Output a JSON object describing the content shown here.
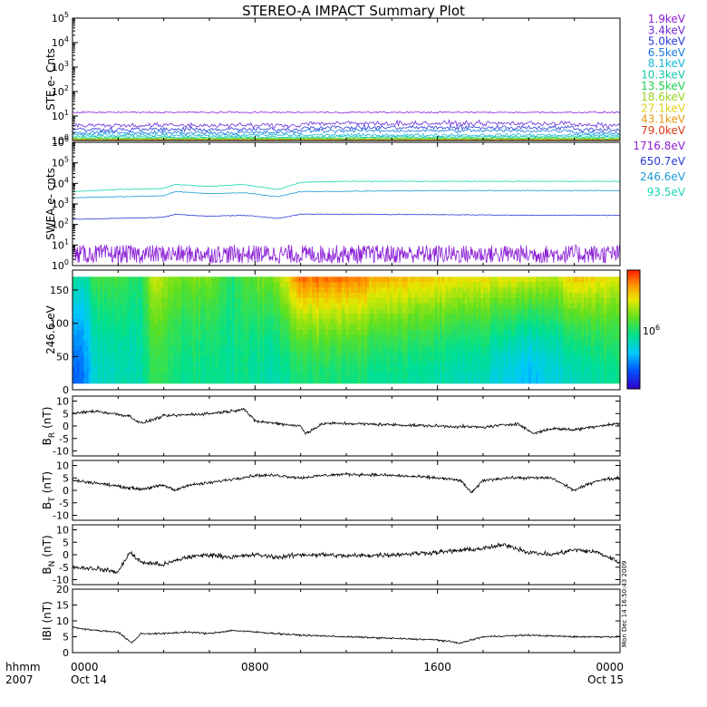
{
  "title": "STEREO-A IMPACT Summary Plot",
  "time_axis": {
    "row1_label": "hhmm",
    "row2_label": "2007",
    "ticks": [
      {
        "hour": 0,
        "time": "0000",
        "date": "Oct 14"
      },
      {
        "hour": 8,
        "time": "0800",
        "date": ""
      },
      {
        "hour": 16,
        "time": "1600",
        "date": ""
      },
      {
        "hour": 24,
        "time": "0000",
        "date": "Oct 15"
      }
    ],
    "range_hours": [
      0,
      24
    ]
  },
  "stamp": "Mon Dec 14 16:50:43 2009",
  "colorbar": {
    "label_prefix": "10",
    "label_exp": "6"
  },
  "colors": {
    "ste": [
      "#8b1fd6",
      "#6a2bd8",
      "#2a3ad8",
      "#1a7ae0",
      "#14b8d6",
      "#16c8a8",
      "#1cd050",
      "#9ad21c",
      "#e0d21a",
      "#e89a14",
      "#d83a14"
    ],
    "swea": [
      "#8b1fd6",
      "#2a3ad8",
      "#1a9ad6",
      "#1ad8b0"
    ]
  },
  "chart_data": [
    {
      "type": "line",
      "name": "ste",
      "ylabel": "STE e- Cnts",
      "yscale": "log",
      "ylim_exp": [
        0,
        5
      ],
      "tick_base": "10",
      "tick_exps": [
        "0",
        "1",
        "2",
        "3",
        "4",
        "5"
      ],
      "legend": [
        "1.9keV",
        "3.4keV",
        "5.0keV",
        "6.5keV",
        "8.1keV",
        "10.3keV",
        "13.5keV",
        "18.6keV",
        "27.1keV",
        "43.1keV",
        "79.0keV"
      ],
      "levels_log10": [
        1.15,
        0.62,
        0.45,
        0.32,
        0.22,
        0.15,
        0.1,
        0.07,
        0.05,
        0.04,
        0.03
      ],
      "noise_log10": [
        0.05,
        0.15,
        0.14,
        0.12,
        0.1,
        0.08,
        0.06,
        0.04,
        0.03,
        0.02,
        0.02
      ]
    },
    {
      "type": "line",
      "name": "swea",
      "ylabel": "SWEA e- cnts",
      "yscale": "log",
      "ylim_exp": [
        0,
        6
      ],
      "tick_base": "10",
      "tick_exps": [
        "0",
        "1",
        "2",
        "3",
        "4",
        "5",
        "6"
      ],
      "legend": [
        "1716.8eV",
        "650.7eV",
        "246.6eV",
        "93.5eV"
      ],
      "series": [
        {
          "x": [
            0,
            2,
            4,
            6,
            8,
            10,
            12,
            16,
            20,
            24
          ],
          "y_log10": [
            0.6,
            0.6,
            0.6,
            0.6,
            0.6,
            0.6,
            0.6,
            0.6,
            0.6,
            0.6
          ],
          "noise": 0.45
        },
        {
          "x": [
            0,
            2,
            4,
            4.5,
            6,
            7.5,
            9,
            10,
            12,
            16,
            20,
            24
          ],
          "y_log10": [
            2.25,
            2.3,
            2.35,
            2.5,
            2.4,
            2.45,
            2.3,
            2.5,
            2.5,
            2.48,
            2.45,
            2.45
          ],
          "noise": 0.03
        },
        {
          "x": [
            0,
            2,
            4,
            4.5,
            6,
            7.5,
            9,
            10,
            12,
            16,
            20,
            24
          ],
          "y_log10": [
            3.3,
            3.35,
            3.4,
            3.6,
            3.5,
            3.55,
            3.35,
            3.6,
            3.62,
            3.65,
            3.65,
            3.65
          ],
          "noise": 0.03
        },
        {
          "x": [
            0,
            2,
            4,
            4.5,
            6,
            7.5,
            9,
            10,
            12,
            16,
            20,
            24
          ],
          "y_log10": [
            3.6,
            3.7,
            3.75,
            3.95,
            3.85,
            3.95,
            3.7,
            4.05,
            4.1,
            4.1,
            4.1,
            4.1
          ],
          "noise": 0.03
        }
      ]
    },
    {
      "type": "heatmap",
      "name": "pad",
      "ylabel": "246.6 eV",
      "ylim": [
        0,
        180
      ],
      "yticks": [
        0,
        50,
        100,
        150
      ],
      "band_range": [
        10,
        170
      ],
      "intensity_hours": [
        0,
        0.5,
        1,
        2,
        3,
        3.6,
        4,
        5,
        6,
        7,
        8,
        9,
        10,
        12,
        14,
        16,
        18,
        20,
        21,
        22,
        24
      ],
      "intensity_high": [
        0.45,
        0.4,
        0.55,
        0.55,
        0.5,
        0.75,
        0.65,
        0.6,
        0.62,
        0.5,
        0.6,
        0.65,
        0.92,
        0.9,
        0.82,
        0.78,
        0.75,
        0.72,
        0.68,
        0.8,
        0.72
      ],
      "intensity_low": [
        0.18,
        0.2,
        0.38,
        0.4,
        0.42,
        0.55,
        0.5,
        0.45,
        0.45,
        0.45,
        0.45,
        0.42,
        0.5,
        0.48,
        0.45,
        0.42,
        0.4,
        0.28,
        0.35,
        0.4,
        0.45
      ]
    },
    {
      "type": "line",
      "name": "br",
      "ylabel_main": "B",
      "ylabel_sub": "R",
      "ylabel_unit": "(nT)",
      "ylim": [
        -12,
        12
      ],
      "yticks": [
        -10,
        -5,
        0,
        5,
        10
      ],
      "x": [
        0,
        1,
        2.5,
        3,
        4,
        5,
        6,
        7,
        7.5,
        8,
        9,
        10,
        10.2,
        11,
        12,
        14,
        16,
        18,
        19.5,
        20.2,
        21,
        22,
        23,
        24
      ],
      "y": [
        5,
        6,
        4,
        1,
        4,
        4.5,
        5,
        6,
        7,
        2,
        1,
        0,
        -3,
        1,
        1,
        0.5,
        0,
        -0.5,
        1,
        -3,
        -1,
        -1.5,
        0,
        1
      ],
      "noise": 0.9
    },
    {
      "type": "line",
      "name": "bt",
      "ylabel_main": "B",
      "ylabel_sub": "T",
      "ylabel_unit": "(nT)",
      "ylim": [
        -12,
        12
      ],
      "yticks": [
        -10,
        -5,
        0,
        5,
        10
      ],
      "x": [
        0,
        1,
        2.5,
        3,
        4,
        4.5,
        5,
        6,
        7,
        8,
        9,
        10,
        11,
        12,
        14,
        16,
        17,
        17.5,
        18,
        19,
        20,
        21,
        22,
        23,
        24
      ],
      "y": [
        4,
        3,
        1,
        0.5,
        2,
        0,
        2,
        3,
        4.5,
        6,
        6,
        5,
        6,
        6.5,
        6,
        5,
        4,
        -1,
        4,
        5,
        5,
        5,
        0,
        4,
        5
      ],
      "noise": 0.9
    },
    {
      "type": "line",
      "name": "bn",
      "ylabel_main": "B",
      "ylabel_sub": "N",
      "ylabel_unit": "(nT)",
      "ylim": [
        -12,
        12
      ],
      "yticks": [
        -10,
        -5,
        0,
        5,
        10
      ],
      "x": [
        0,
        1,
        2,
        2.5,
        3,
        4,
        5,
        6,
        7,
        8,
        9,
        10,
        11,
        12,
        14,
        16,
        18,
        19,
        20,
        21,
        22,
        23,
        24
      ],
      "y": [
        -5,
        -5.5,
        -7,
        1,
        -3,
        -4,
        -1,
        0,
        -1,
        0,
        -1,
        0,
        0,
        -0.5,
        0,
        1,
        2.5,
        4,
        1,
        0,
        2,
        1,
        -3
      ],
      "noise": 1.4
    },
    {
      "type": "line",
      "name": "bmag",
      "ylabel_main": "IBI",
      "ylabel_sub": "",
      "ylabel_unit": "(nT)",
      "ylim": [
        0,
        20
      ],
      "yticks": [
        0,
        5,
        10,
        15,
        20
      ],
      "x": [
        0,
        1,
        2,
        2.6,
        3,
        4,
        5,
        6,
        7,
        8,
        9,
        10,
        12,
        14,
        16,
        17,
        18,
        20,
        22,
        24
      ],
      "y": [
        8,
        7,
        6.5,
        3,
        6,
        6,
        6.5,
        6,
        7,
        6.5,
        6,
        5.5,
        5,
        4.5,
        4,
        3,
        5,
        5.5,
        5,
        5
      ],
      "noise": 0.4
    }
  ]
}
